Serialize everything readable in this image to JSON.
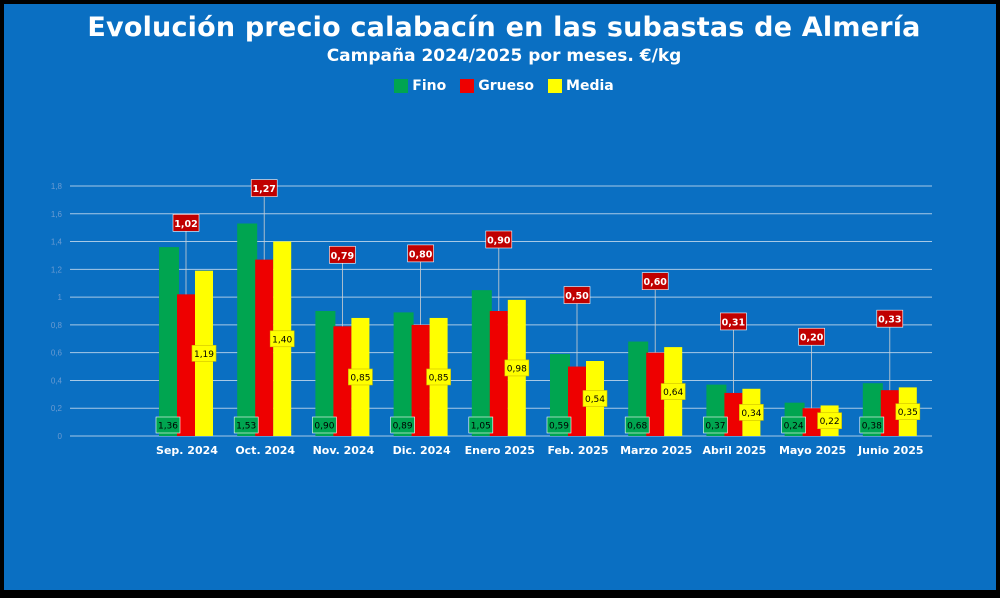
{
  "chart_data": {
    "type": "bar",
    "title": "Evolución  precio calabacín en las subastas de Almería",
    "subtitle": "Campaña 2024/2025 por meses. €/kg",
    "categories": [
      "Sep. 2024",
      "Oct. 2024",
      "Nov. 2024",
      "Dic. 2024",
      "Enero 2025",
      "Feb. 2025",
      "Marzo 2025",
      "Abril 2025",
      "Mayo 2025",
      "Junio 2025"
    ],
    "series": [
      {
        "name": "Fino",
        "color": "#00a550",
        "values": [
          1.36,
          1.53,
          0.9,
          0.89,
          1.05,
          0.59,
          0.68,
          0.37,
          0.24,
          0.38
        ],
        "labels": [
          "1,36",
          "1,53",
          "0,90",
          "0,89",
          "1,05",
          "0,59",
          "0,68",
          "0,37",
          "0,24",
          "0,38"
        ]
      },
      {
        "name": "Grueso",
        "color": "#ee0000",
        "values": [
          1.02,
          1.27,
          0.79,
          0.8,
          0.9,
          0.5,
          0.6,
          0.31,
          0.2,
          0.33
        ],
        "labels": [
          "1,02",
          "1,27",
          "0,79",
          "0,80",
          "0,90",
          "0,50",
          "0,60",
          "0,31",
          "0,20",
          "0,33"
        ]
      },
      {
        "name": "Media",
        "color": "#ffff00",
        "values": [
          1.19,
          1.4,
          0.85,
          0.85,
          0.98,
          0.54,
          0.64,
          0.34,
          0.22,
          0.35
        ],
        "labels": [
          "1,19",
          "1,40",
          "0,85",
          "0,85",
          "0,98",
          "0,54",
          "0,64",
          "0,34",
          "0,22",
          "0,35"
        ]
      }
    ],
    "y_ticks": [
      "0",
      "0,2",
      "0,4",
      "0,6",
      "0,8",
      "1",
      "1,2",
      "1,4",
      "1,6",
      "1,8"
    ],
    "ylim": [
      0,
      1.8
    ],
    "grid": true,
    "legend_position": "top-center"
  }
}
